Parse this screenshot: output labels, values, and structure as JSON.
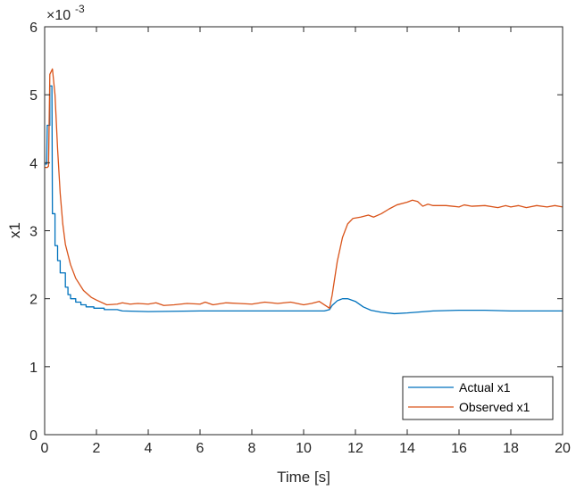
{
  "chart_data": {
    "type": "line",
    "xlabel": "Time [s]",
    "ylabel": "x1",
    "exponent_label": "×10",
    "exponent_value": "-3",
    "xlim": [
      0,
      20
    ],
    "ylim": [
      0,
      6
    ],
    "xticks": [
      "0",
      "2",
      "4",
      "6",
      "8",
      "10",
      "12",
      "14",
      "16",
      "18",
      "20"
    ],
    "yticks": [
      "0",
      "1",
      "2",
      "3",
      "4",
      "5",
      "6"
    ],
    "grid": false,
    "legend_position": "bottom-right",
    "series": [
      {
        "name": "Actual x1",
        "color": "#0072BD",
        "points": [
          [
            0.0,
            3.98
          ],
          [
            0.08,
            3.98
          ],
          [
            0.1,
            4.55
          ],
          [
            0.2,
            4.55
          ],
          [
            0.2,
            5.13
          ],
          [
            0.28,
            5.13
          ],
          [
            0.3,
            3.25
          ],
          [
            0.4,
            3.25
          ],
          [
            0.4,
            2.78
          ],
          [
            0.5,
            2.78
          ],
          [
            0.5,
            2.56
          ],
          [
            0.6,
            2.56
          ],
          [
            0.6,
            2.38
          ],
          [
            0.8,
            2.38
          ],
          [
            0.8,
            2.17
          ],
          [
            0.9,
            2.17
          ],
          [
            0.9,
            2.06
          ],
          [
            1.0,
            2.06
          ],
          [
            1.0,
            2.0
          ],
          [
            1.2,
            2.0
          ],
          [
            1.2,
            1.95
          ],
          [
            1.4,
            1.95
          ],
          [
            1.4,
            1.91
          ],
          [
            1.6,
            1.91
          ],
          [
            1.6,
            1.88
          ],
          [
            1.9,
            1.88
          ],
          [
            1.9,
            1.86
          ],
          [
            2.3,
            1.86
          ],
          [
            2.3,
            1.84
          ],
          [
            2.8,
            1.84
          ],
          [
            3.0,
            1.82
          ],
          [
            4.0,
            1.81
          ],
          [
            6.0,
            1.82
          ],
          [
            8.0,
            1.82
          ],
          [
            10.0,
            1.82
          ],
          [
            10.8,
            1.82
          ],
          [
            11.0,
            1.84
          ],
          [
            11.1,
            1.9
          ],
          [
            11.3,
            1.97
          ],
          [
            11.5,
            2.0
          ],
          [
            11.7,
            2.0
          ],
          [
            12.0,
            1.96
          ],
          [
            12.3,
            1.88
          ],
          [
            12.6,
            1.83
          ],
          [
            13.0,
            1.8
          ],
          [
            13.5,
            1.78
          ],
          [
            14.0,
            1.79
          ],
          [
            15.0,
            1.82
          ],
          [
            16.0,
            1.83
          ],
          [
            17.0,
            1.83
          ],
          [
            18.0,
            1.82
          ],
          [
            19.0,
            1.82
          ],
          [
            20.0,
            1.82
          ]
        ]
      },
      {
        "name": "Observed x1",
        "color": "#D95319",
        "points": [
          [
            0.0,
            3.93
          ],
          [
            0.1,
            3.93
          ],
          [
            0.15,
            3.95
          ],
          [
            0.2,
            5.3
          ],
          [
            0.3,
            5.38
          ],
          [
            0.4,
            5.0
          ],
          [
            0.5,
            4.2
          ],
          [
            0.6,
            3.55
          ],
          [
            0.7,
            3.1
          ],
          [
            0.8,
            2.8
          ],
          [
            1.0,
            2.5
          ],
          [
            1.2,
            2.3
          ],
          [
            1.5,
            2.12
          ],
          [
            1.8,
            2.02
          ],
          [
            2.0,
            1.98
          ],
          [
            2.4,
            1.91
          ],
          [
            2.8,
            1.92
          ],
          [
            3.0,
            1.94
          ],
          [
            3.3,
            1.92
          ],
          [
            3.6,
            1.93
          ],
          [
            4.0,
            1.92
          ],
          [
            4.3,
            1.94
          ],
          [
            4.6,
            1.9
          ],
          [
            5.0,
            1.91
          ],
          [
            5.5,
            1.93
          ],
          [
            6.0,
            1.92
          ],
          [
            6.2,
            1.95
          ],
          [
            6.5,
            1.91
          ],
          [
            7.0,
            1.94
          ],
          [
            7.5,
            1.93
          ],
          [
            8.0,
            1.92
          ],
          [
            8.5,
            1.95
          ],
          [
            9.0,
            1.93
          ],
          [
            9.5,
            1.95
          ],
          [
            10.0,
            1.91
          ],
          [
            10.3,
            1.93
          ],
          [
            10.6,
            1.96
          ],
          [
            11.0,
            1.86
          ],
          [
            11.1,
            2.05
          ],
          [
            11.3,
            2.55
          ],
          [
            11.5,
            2.9
          ],
          [
            11.7,
            3.1
          ],
          [
            11.9,
            3.18
          ],
          [
            12.2,
            3.2
          ],
          [
            12.5,
            3.23
          ],
          [
            12.7,
            3.2
          ],
          [
            13.0,
            3.25
          ],
          [
            13.3,
            3.32
          ],
          [
            13.6,
            3.38
          ],
          [
            14.0,
            3.42
          ],
          [
            14.2,
            3.45
          ],
          [
            14.4,
            3.43
          ],
          [
            14.6,
            3.36
          ],
          [
            14.8,
            3.39
          ],
          [
            15.0,
            3.37
          ],
          [
            15.5,
            3.37
          ],
          [
            16.0,
            3.35
          ],
          [
            16.2,
            3.38
          ],
          [
            16.5,
            3.36
          ],
          [
            17.0,
            3.37
          ],
          [
            17.5,
            3.34
          ],
          [
            17.8,
            3.37
          ],
          [
            18.0,
            3.35
          ],
          [
            18.3,
            3.37
          ],
          [
            18.6,
            3.34
          ],
          [
            19.0,
            3.37
          ],
          [
            19.4,
            3.35
          ],
          [
            19.7,
            3.37
          ],
          [
            20.0,
            3.35
          ]
        ]
      }
    ]
  }
}
